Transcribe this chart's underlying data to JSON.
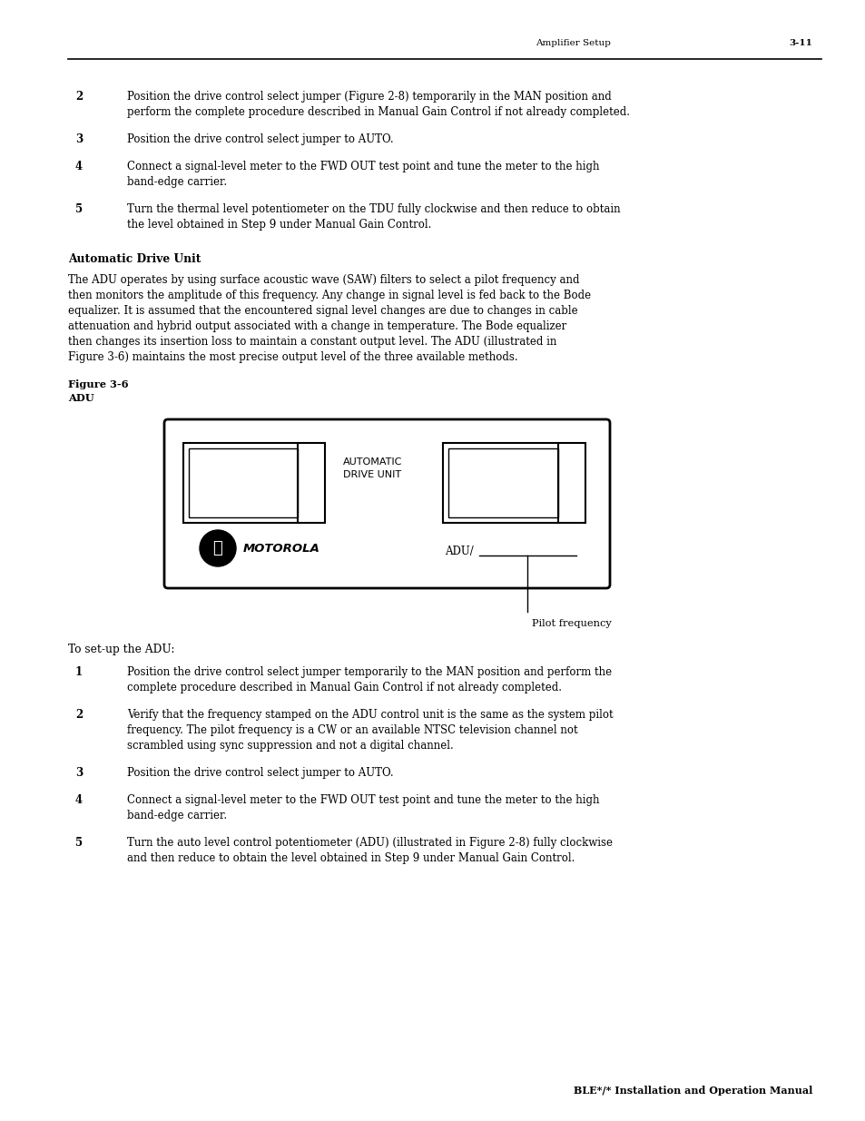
{
  "header_center": "Amplifier Setup",
  "header_right": "3-11",
  "footer_right": "BLE*/* Installation and Operation Manual",
  "section_title": "Automatic Drive Unit",
  "body_para_lines": [
    "The ADU operates by using surface acoustic wave (SAW) filters to select a pilot frequency and",
    "then monitors the amplitude of this frequency. Any change in signal level is fed back to the Bode",
    "equalizer. It is assumed that the encountered signal level changes are due to changes in cable",
    "attenuation and hybrid output associated with a change in temperature. The Bode equalizer",
    "then changes its insertion loss to maintain a constant output level. The ADU (illustrated in",
    "Figure 3-6) maintains the most precise output level of the three available methods."
  ],
  "figure_label": "Figure 3-6",
  "figure_sublabel": "ADU",
  "pilot_freq_label": "Pilot frequency",
  "setup_title": "To set-up the ADU:",
  "items_top": [
    {
      "num": "2",
      "lines": [
        "Position the drive control select jumper (Figure 2-8) temporarily in the MAN position and",
        "perform the complete procedure described in Manual Gain Control if not already completed."
      ]
    },
    {
      "num": "3",
      "lines": [
        "Position the drive control select jumper to AUTO."
      ]
    },
    {
      "num": "4",
      "lines": [
        "Connect a signal-level meter to the FWD OUT test point and tune the meter to the high",
        "band-edge carrier."
      ]
    },
    {
      "num": "5",
      "lines": [
        "Turn the thermal level potentiometer on the TDU fully clockwise and then reduce to obtain",
        "the level obtained in Step 9 under Manual Gain Control."
      ]
    }
  ],
  "items_bottom": [
    {
      "num": "1",
      "lines": [
        "Position the drive control select jumper temporarily to the MAN position and perform the",
        "complete procedure described in Manual Gain Control if not already completed."
      ]
    },
    {
      "num": "2",
      "lines": [
        "Verify that the frequency stamped on the ADU control unit is the same as the system pilot",
        "frequency. The pilot frequency is a CW or an available NTSC television channel not",
        "scrambled using sync suppression and not a digital channel."
      ]
    },
    {
      "num": "3",
      "lines": [
        "Position the drive control select jumper to AUTO."
      ]
    },
    {
      "num": "4",
      "lines": [
        "Connect a signal-level meter to the FWD OUT test point and tune the meter to the high",
        "band-edge carrier."
      ]
    },
    {
      "num": "5",
      "lines": [
        "Turn the auto level control potentiometer (ADU) (illustrated in Figure 2-8) fully clockwise",
        "and then reduce to obtain the level obtained in Step 9 under Manual Gain Control."
      ]
    }
  ],
  "bg_color": "#ffffff",
  "text_color": "#000000"
}
